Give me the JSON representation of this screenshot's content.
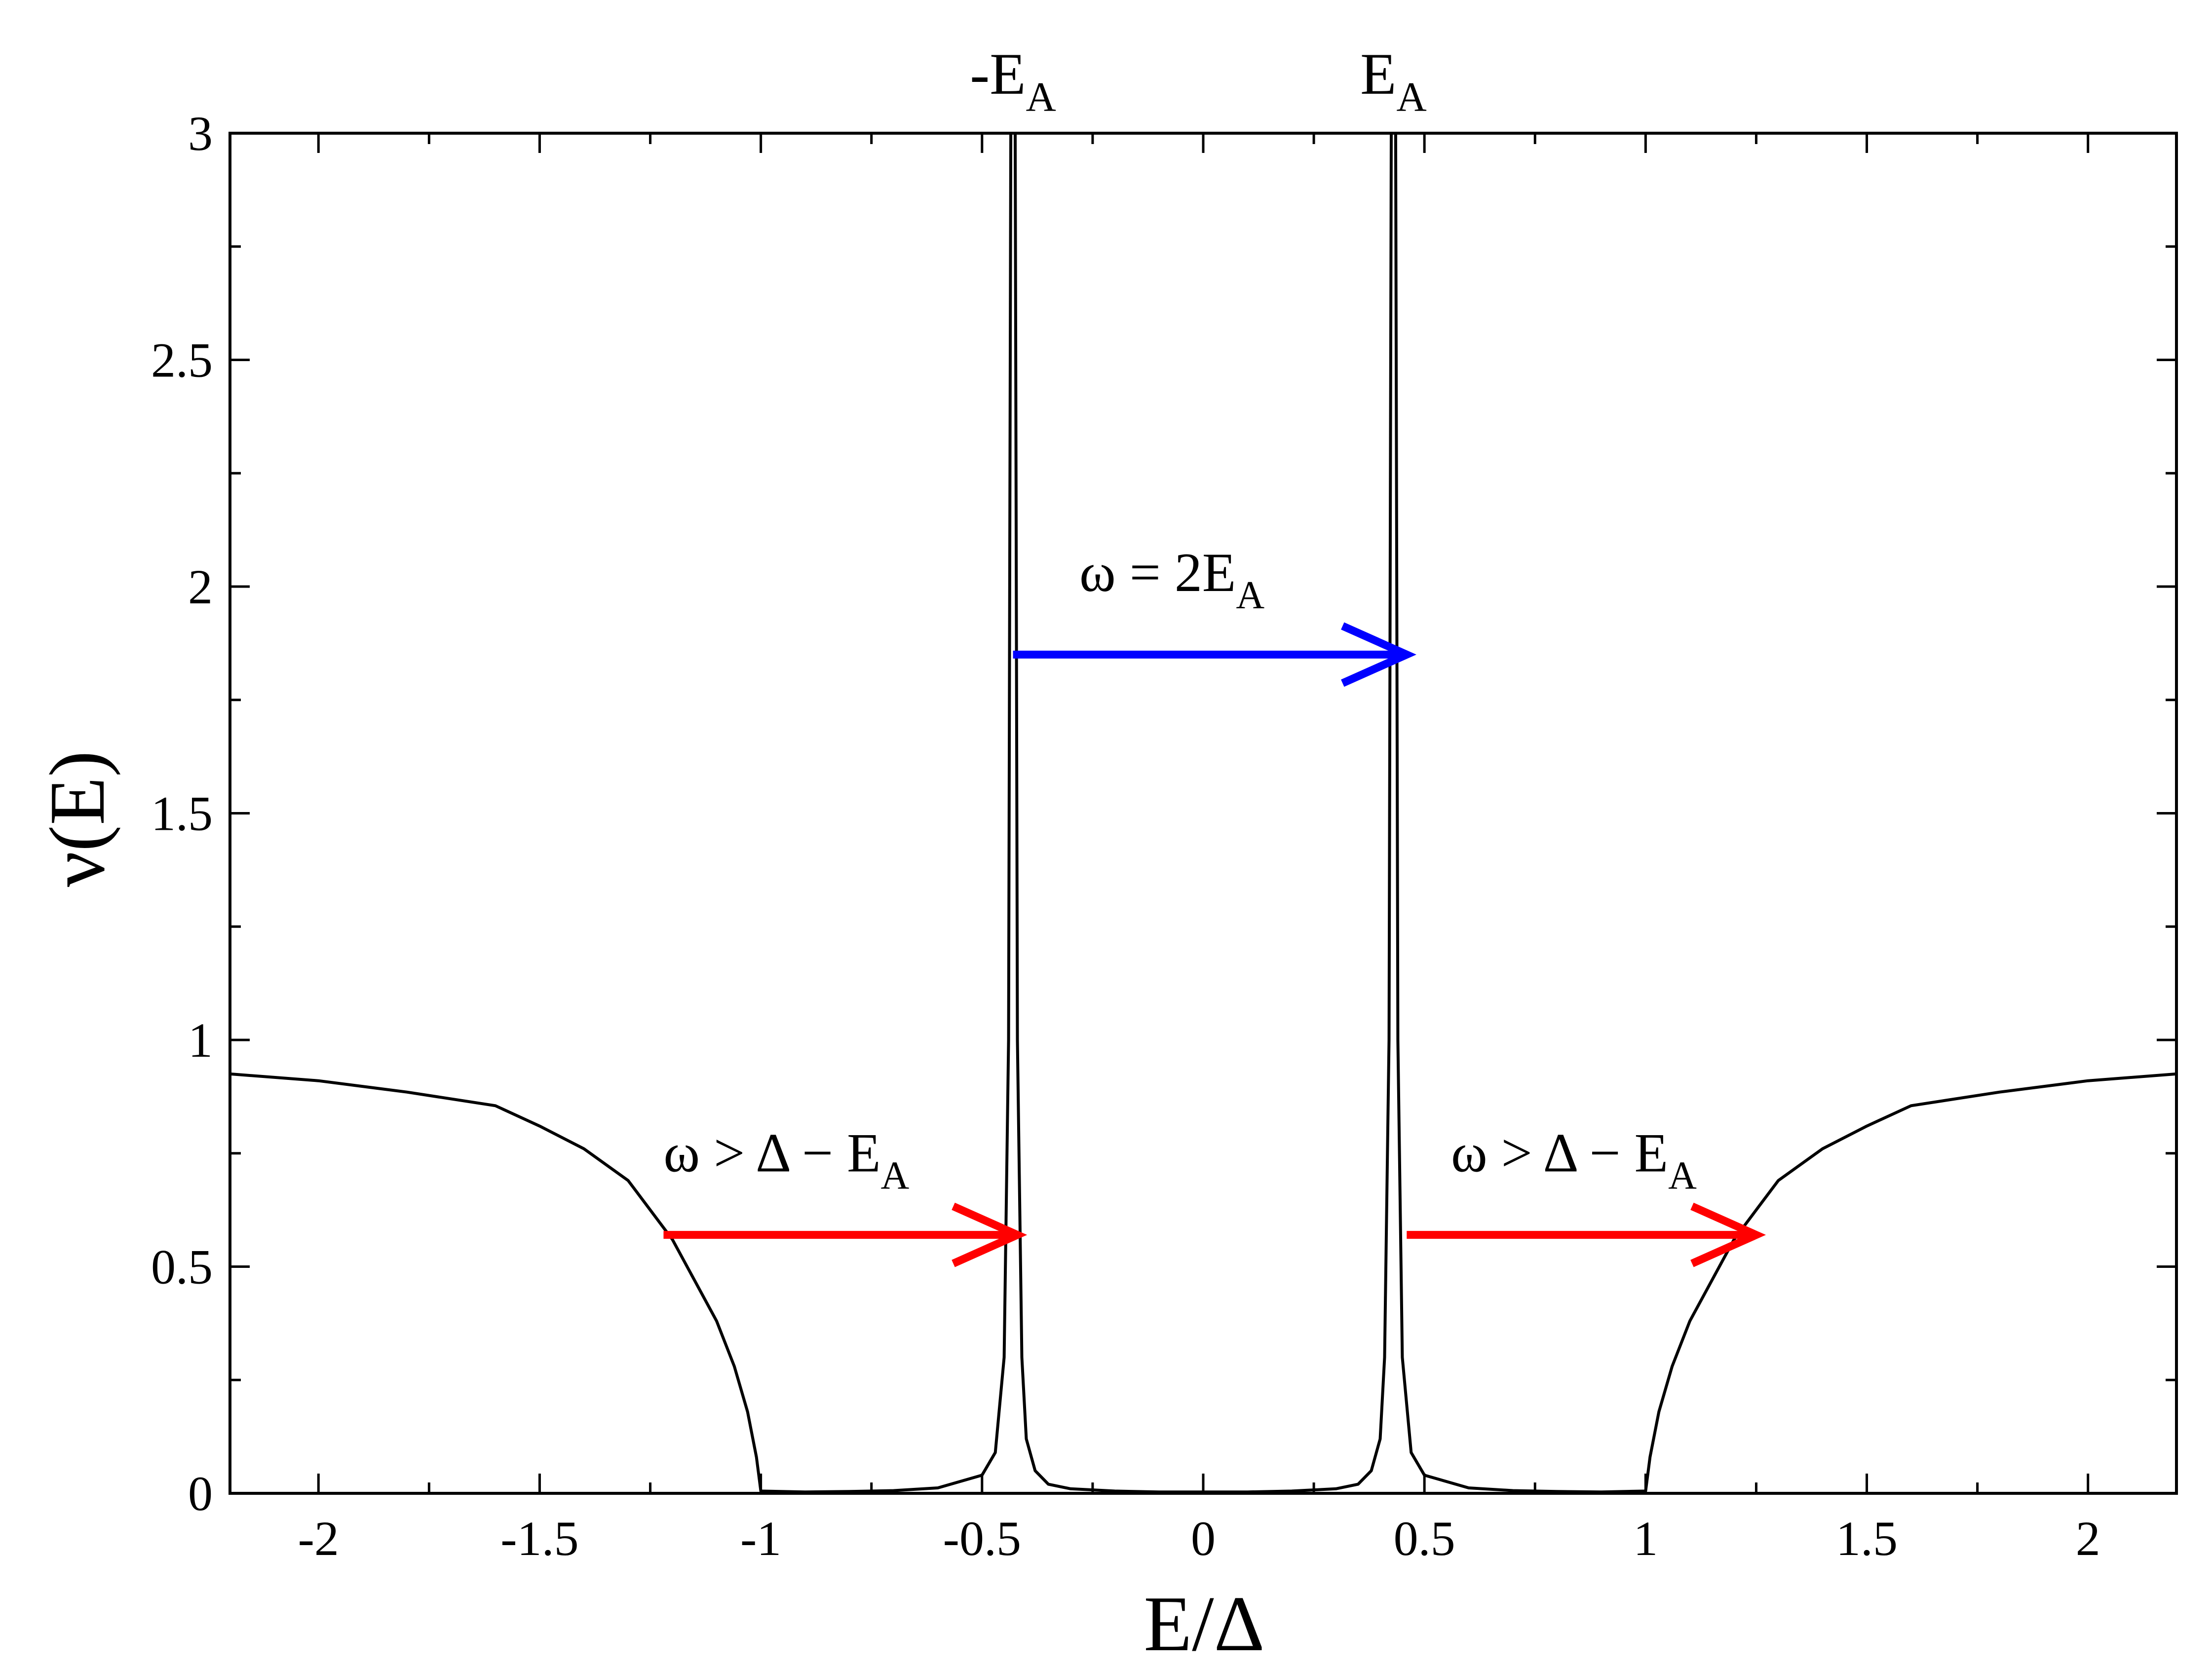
{
  "chart_data": {
    "type": "line",
    "xlabel": "E/Δ",
    "ylabel": "ν(E)",
    "xlim": [
      -2.2,
      2.2
    ],
    "ylim": [
      0,
      3
    ],
    "x_ticks": [
      -2,
      -1.5,
      -1,
      -0.5,
      0,
      0.5,
      1,
      1.5,
      2
    ],
    "x_tick_labels": [
      "-2",
      "-1.5",
      "-1",
      "-0.5",
      "0",
      "0.5",
      "1",
      "1.5",
      "2"
    ],
    "y_ticks": [
      0,
      0.5,
      1,
      1.5,
      2,
      2.5,
      3
    ],
    "y_tick_labels": [
      "0",
      "0.5",
      "1",
      "1.5",
      "2",
      "2.5",
      "3"
    ],
    "grid": false,
    "series": [
      {
        "color": "#000000",
        "x": [
          -2.2,
          -2.0,
          -1.8,
          -1.6,
          -1.5,
          -1.4,
          -1.3,
          -1.2,
          -1.15,
          -1.1,
          -1.06,
          -1.03,
          -1.01,
          -1.0,
          -0.9,
          -0.8,
          -0.7,
          -0.6,
          -0.5,
          -0.47,
          -0.45,
          -0.44,
          -0.435,
          -0.425,
          -0.42,
          -0.41,
          -0.4,
          -0.38,
          -0.35,
          -0.3,
          -0.2,
          -0.1,
          0,
          0.1,
          0.2,
          0.3,
          0.35,
          0.38,
          0.4,
          0.41,
          0.42,
          0.425,
          0.435,
          0.44,
          0.45,
          0.47,
          0.5,
          0.6,
          0.7,
          0.8,
          0.9,
          1.0,
          1.01,
          1.03,
          1.06,
          1.1,
          1.15,
          1.2,
          1.3,
          1.4,
          1.5,
          1.6,
          1.8,
          2.0,
          2.2
        ],
        "y": [
          0.925,
          0.91,
          0.885,
          0.855,
          0.81,
          0.76,
          0.69,
          0.56,
          0.47,
          0.38,
          0.28,
          0.18,
          0.08,
          0.005,
          0.003,
          0.004,
          0.006,
          0.012,
          0.04,
          0.09,
          0.3,
          1.0,
          3.0,
          3.0,
          1.0,
          0.3,
          0.12,
          0.05,
          0.02,
          0.01,
          0.005,
          0.003,
          0.003,
          0.003,
          0.005,
          0.01,
          0.02,
          0.05,
          0.12,
          0.3,
          1.0,
          3.0,
          3.0,
          1.0,
          0.3,
          0.09,
          0.04,
          0.012,
          0.006,
          0.004,
          0.003,
          0.005,
          0.08,
          0.18,
          0.28,
          0.38,
          0.47,
          0.56,
          0.69,
          0.76,
          0.81,
          0.855,
          0.885,
          0.91,
          0.925
        ]
      }
    ],
    "top_labels": [
      {
        "x": -0.43,
        "text": "-E",
        "sub": "A"
      },
      {
        "x": 0.43,
        "text": "E",
        "sub": "A"
      }
    ],
    "arrows": [
      {
        "color": "#0000ff",
        "x0": -0.43,
        "x1": 0.46,
        "y": 1.85
      },
      {
        "color": "#ff0000",
        "x0": -1.22,
        "x1": -0.42,
        "y": 0.57
      },
      {
        "color": "#ff0000",
        "x0": 0.46,
        "x1": 1.25,
        "y": 0.57
      }
    ],
    "annotations": [
      {
        "text": "ω = 2E",
        "sub": "A",
        "x": -0.28,
        "y": 1.99
      },
      {
        "text": "ω > Δ − E",
        "sub": "A",
        "x": -1.22,
        "y": 0.71
      },
      {
        "text": "ω > Δ − E",
        "sub": "A",
        "x": 0.56,
        "y": 0.71
      }
    ]
  }
}
